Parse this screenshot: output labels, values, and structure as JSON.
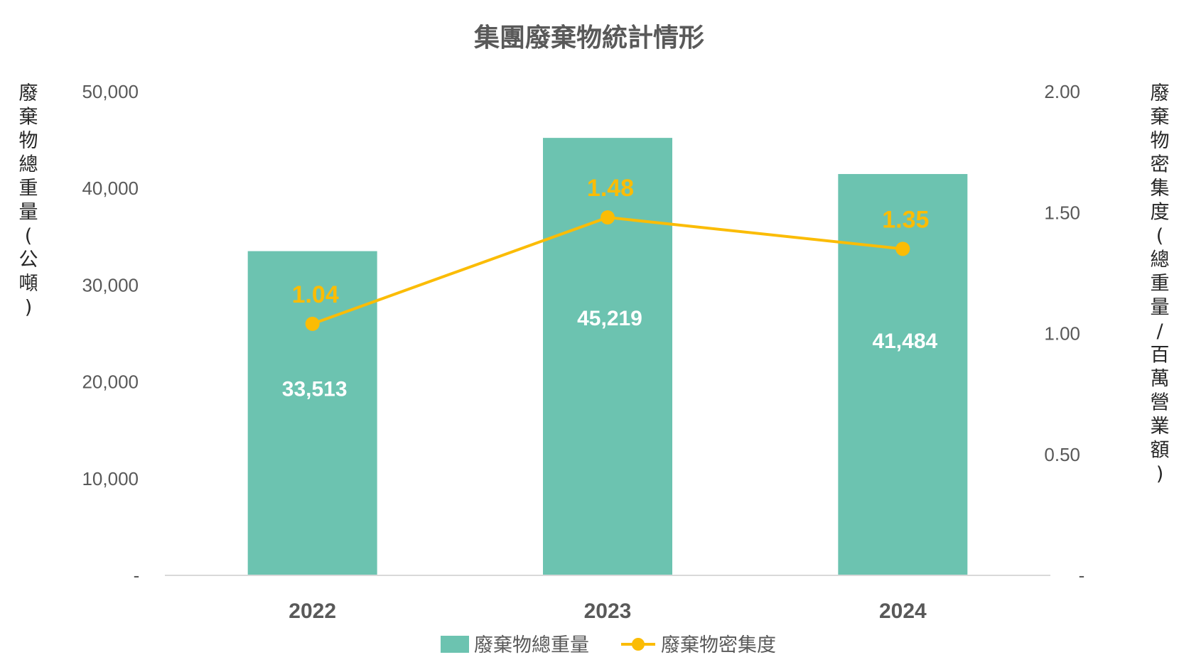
{
  "chart_data": {
    "type": "bar+line",
    "title": "集團廢棄物統計情形",
    "categories": [
      "2022",
      "2023",
      "2024"
    ],
    "series": [
      {
        "name": "廢棄物總重量",
        "type": "bar",
        "axis": "left",
        "values": [
          33513,
          45219,
          41484
        ],
        "labels": [
          "33,513",
          "45,219",
          "41,484"
        ],
        "color": "#6CC3B0"
      },
      {
        "name": "廢棄物密集度",
        "type": "line",
        "axis": "right",
        "values": [
          1.04,
          1.48,
          1.35
        ],
        "labels": [
          "1.04",
          "1.48",
          "1.35"
        ],
        "color": "#FBBC05"
      }
    ],
    "y_left": {
      "label": "廢棄物總重量(公噸)",
      "ylim": [
        0,
        50000
      ],
      "ticks": [
        0,
        10000,
        20000,
        30000,
        40000,
        50000
      ],
      "tick_labels": [
        "-",
        "10,000",
        "20,000",
        "30,000",
        "40,000",
        "50,000"
      ]
    },
    "y_right": {
      "label": "廢棄物密集度(總重量/百萬營業額)",
      "ylim": [
        0,
        2.0
      ],
      "ticks": [
        0,
        0.5,
        1.0,
        1.5,
        2.0
      ],
      "tick_labels": [
        "-",
        "0.50",
        "1.00",
        "1.50",
        "2.00"
      ]
    },
    "legend_position": "bottom-center",
    "grid": false
  }
}
